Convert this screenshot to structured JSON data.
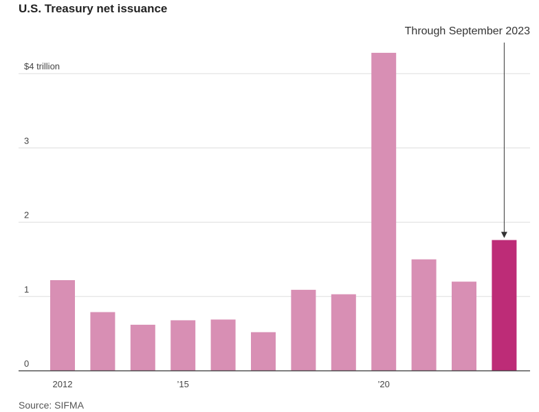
{
  "title": "U.S. Treasury net issuance",
  "source": "Source: SIFMA",
  "chart_data": {
    "type": "bar",
    "title": "U.S. Treasury net issuance",
    "xlabel": "",
    "ylabel": "",
    "categories": [
      "2012",
      "2013",
      "2014",
      "2015",
      "2016",
      "2017",
      "2018",
      "2019",
      "2020",
      "2021",
      "2022",
      "2023"
    ],
    "x_tick_labels": [
      {
        "category": "2012",
        "label": "2012"
      },
      {
        "category": "2015",
        "label": "’15"
      },
      {
        "category": "2020",
        "label": "’20"
      }
    ],
    "values": [
      1.22,
      0.79,
      0.62,
      0.68,
      0.69,
      0.52,
      1.09,
      1.03,
      4.28,
      1.5,
      1.2,
      1.76
    ],
    "y_ticks": [
      {
        "value": 0,
        "label": "0"
      },
      {
        "value": 1,
        "label": "1"
      },
      {
        "value": 2,
        "label": "2"
      },
      {
        "value": 3,
        "label": "3"
      },
      {
        "value": 4,
        "label": "$4 trillion"
      }
    ],
    "ylim": [
      0,
      4.5
    ],
    "grid": true,
    "colors": {
      "bar": "#d88fb4",
      "highlight": "#bd2c77",
      "grid": "#dddddd",
      "baseline": "#333333"
    },
    "highlight_category": "2023",
    "annotation": {
      "category": "2023",
      "text": "Through September 2023"
    }
  }
}
